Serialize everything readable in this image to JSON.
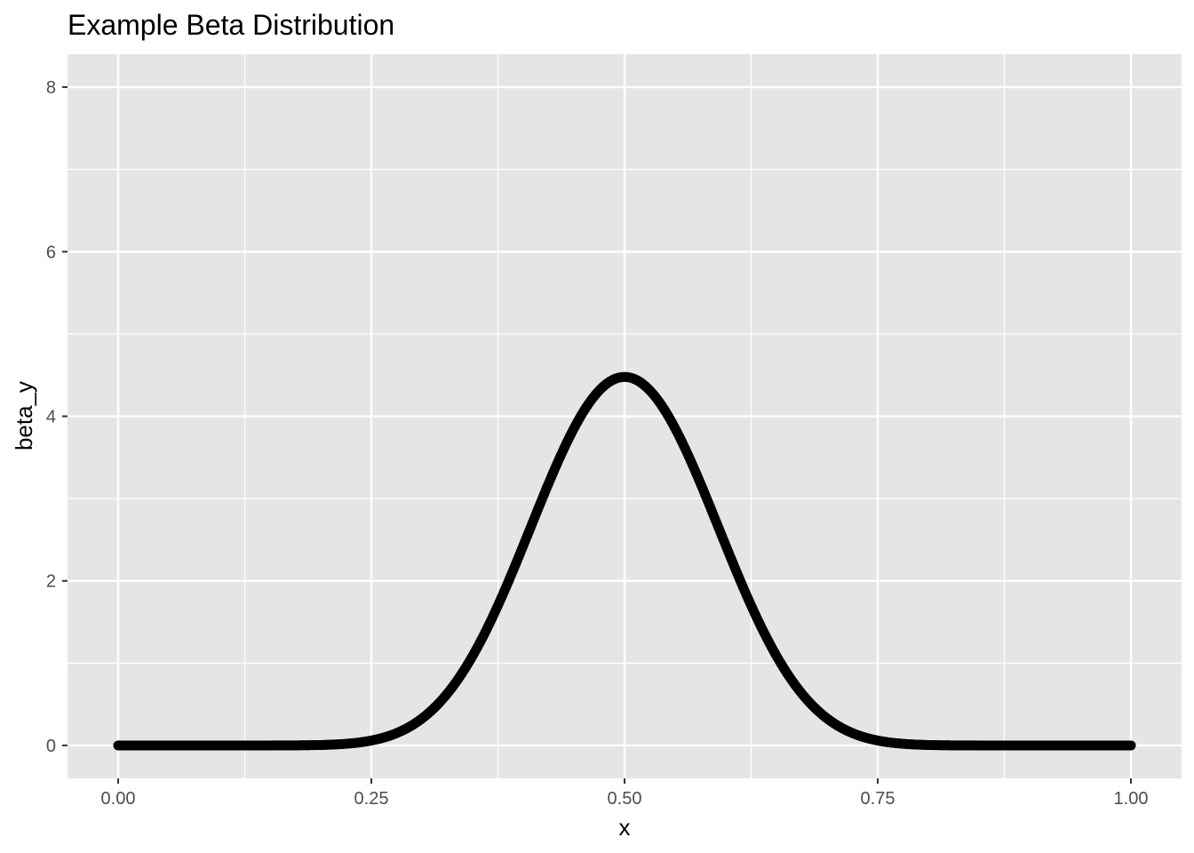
{
  "chart_data": {
    "type": "scatter",
    "title": "Example Beta Distribution",
    "xlabel": "x",
    "ylabel": "beta_y",
    "x_ticks": [
      "0.00",
      "0.25",
      "0.50",
      "0.75",
      "1.00"
    ],
    "y_ticks": [
      "0",
      "2",
      "4",
      "6",
      "8"
    ],
    "xlim": [
      -0.05,
      1.05
    ],
    "ylim": [
      -0.4,
      8.4
    ],
    "grid": true,
    "panel_background": "#e5e5e5",
    "grid_color": "#ffffff",
    "point_color": "#000000",
    "series": [
      {
        "distribution": "beta",
        "shape1": 16,
        "shape2": 16,
        "x_start": 0,
        "x_end": 1,
        "points": 1000
      }
    ]
  }
}
